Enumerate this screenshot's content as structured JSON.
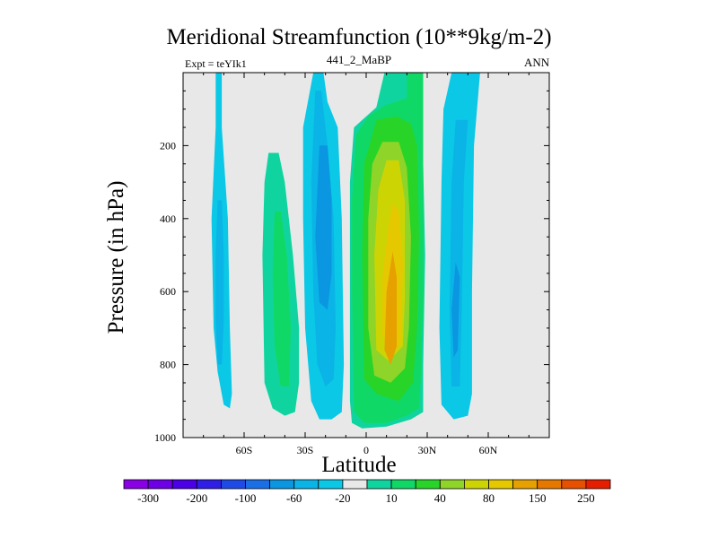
{
  "header": {
    "title": "Meridional Streamfunction (10**9kg/m-2)",
    "expt": "Expt = teYIk1",
    "subtitle": "441_2_MaBP",
    "season": "ANN"
  },
  "colors": {
    "plot_background": "#e8e8e8",
    "levels": [
      "#8a00e6",
      "#6e00e6",
      "#4b00e6",
      "#2f1fe6",
      "#1e4be6",
      "#1a6fe6",
      "#0a96e0",
      "#0ab4e6",
      "#0ac8e6",
      "#e8e8e8",
      "#10d4a0",
      "#10d866",
      "#28d428",
      "#8fd428",
      "#cdd404",
      "#e6c800",
      "#e6a000",
      "#e67800",
      "#e65000",
      "#e61e00"
    ]
  },
  "chart_data": {
    "type": "heatmap",
    "title": "Meridional Streamfunction (10**9kg/m-2)",
    "xlabel": "Latitude",
    "ylabel": "Pressure (in hPa)",
    "xlim": [
      -90,
      90
    ],
    "ylim": [
      1000,
      0
    ],
    "x_ticks": [
      {
        "value": -60,
        "label": "60S"
      },
      {
        "value": -30,
        "label": "30S"
      },
      {
        "value": 0,
        "label": "0"
      },
      {
        "value": 30,
        "label": "30N"
      },
      {
        "value": 60,
        "label": "60N"
      }
    ],
    "y_ticks": [
      {
        "value": 200,
        "label": "200"
      },
      {
        "value": 400,
        "label": "400"
      },
      {
        "value": 600,
        "label": "600"
      },
      {
        "value": 800,
        "label": "800"
      },
      {
        "value": 1000,
        "label": "1000"
      }
    ],
    "colorbar": {
      "labels": [
        "-300",
        "-200",
        "-100",
        "-60",
        "-20",
        "10",
        "40",
        "80",
        "150",
        "250"
      ]
    },
    "cells": [
      {
        "name": "cell-65s-negative",
        "layers": [
          {
            "level": 8,
            "poly": [
              [
                -74,
                0
              ],
              [
                -71,
                0
              ],
              [
                -71,
                150
              ],
              [
                -68,
                400
              ],
              [
                -67,
                700
              ],
              [
                -66,
                880
              ],
              [
                -67,
                920
              ],
              [
                -70,
                910
              ],
              [
                -73,
                820
              ],
              [
                -75,
                700
              ],
              [
                -76,
                400
              ],
              [
                -74,
                150
              ]
            ]
          },
          {
            "level": 7,
            "poly": [
              [
                -73,
                350
              ],
              [
                -71,
                350
              ],
              [
                -70,
                500
              ],
              [
                -70,
                680
              ],
              [
                -71,
                800
              ],
              [
                -73,
                800
              ],
              [
                -74,
                680
              ],
              [
                -74,
                500
              ]
            ]
          }
        ]
      },
      {
        "name": "cell-45s-positive",
        "layers": [
          {
            "level": 10,
            "poly": [
              [
                -48,
                220
              ],
              [
                -43,
                220
              ],
              [
                -40,
                300
              ],
              [
                -36,
                500
              ],
              [
                -33,
                700
              ],
              [
                -33,
                850
              ],
              [
                -35,
                930
              ],
              [
                -40,
                940
              ],
              [
                -46,
                920
              ],
              [
                -50,
                850
              ],
              [
                -51,
                500
              ],
              [
                -50,
                300
              ]
            ]
          },
          {
            "level": 11,
            "poly": [
              [
                -45,
                380
              ],
              [
                -42,
                380
              ],
              [
                -39,
                500
              ],
              [
                -37,
                700
              ],
              [
                -38,
                860
              ],
              [
                -42,
                860
              ],
              [
                -45,
                750
              ],
              [
                -46,
                550
              ]
            ]
          }
        ]
      },
      {
        "name": "cell-20s-negative",
        "layers": [
          {
            "level": 8,
            "poly": [
              [
                -26,
                0
              ],
              [
                -21,
                0
              ],
              [
                -19,
                80
              ],
              [
                -14,
                150
              ],
              [
                -12,
                400
              ],
              [
                -11,
                800
              ],
              [
                -12,
                930
              ],
              [
                -17,
                950
              ],
              [
                -23,
                950
              ],
              [
                -27,
                900
              ],
              [
                -30,
                700
              ],
              [
                -31,
                400
              ],
              [
                -31,
                150
              ]
            ]
          },
          {
            "level": 7,
            "poly": [
              [
                -25,
                50
              ],
              [
                -22,
                50
              ],
              [
                -19,
                200
              ],
              [
                -16,
                400
              ],
              [
                -15,
                700
              ],
              [
                -16,
                840
              ],
              [
                -20,
                860
              ],
              [
                -24,
                800
              ],
              [
                -26,
                600
              ],
              [
                -27,
                300
              ]
            ]
          },
          {
            "level": 6,
            "poly": [
              [
                -23,
                200
              ],
              [
                -19,
                200
              ],
              [
                -17,
                350
              ],
              [
                -17,
                550
              ],
              [
                -19,
                650
              ],
              [
                -23,
                630
              ],
              [
                -25,
                450
              ]
            ]
          }
        ]
      },
      {
        "name": "cell-15n-positive",
        "layers": [
          {
            "level": 10,
            "poly": [
              [
                9,
                0
              ],
              [
                28,
                0
              ],
              [
                28,
                250
              ],
              [
                29,
                500
              ],
              [
                28,
                800
              ],
              [
                28,
                930
              ],
              [
                22,
                950
              ],
              [
                10,
                970
              ],
              [
                -2,
                975
              ],
              [
                -7,
                960
              ],
              [
                -8,
                900
              ],
              [
                -8,
                300
              ],
              [
                -6,
                150
              ],
              [
                -2,
                130
              ],
              [
                5,
                95
              ]
            ]
          },
          {
            "level": 11,
            "poly": [
              [
                20,
                0
              ],
              [
                28,
                0
              ],
              [
                28,
                250
              ],
              [
                28,
                600
              ],
              [
                27,
                820
              ],
              [
                26,
                920
              ],
              [
                20,
                940
              ],
              [
                10,
                960
              ],
              [
                -1,
                960
              ],
              [
                -6,
                930
              ],
              [
                -7,
                600
              ],
              [
                -7,
                350
              ],
              [
                -5,
                170
              ],
              [
                1,
                120
              ],
              [
                9,
                90
              ],
              [
                20,
                70
              ]
            ]
          },
          {
            "level": 12,
            "poly": [
              [
                5,
                130
              ],
              [
                15,
                120
              ],
              [
                22,
                140
              ],
              [
                25,
                200
              ],
              [
                26,
                450
              ],
              [
                25,
                700
              ],
              [
                23,
                850
              ],
              [
                16,
                900
              ],
              [
                5,
                880
              ],
              [
                -1,
                840
              ],
              [
                -2,
                500
              ],
              [
                -1,
                250
              ]
            ]
          },
          {
            "level": 13,
            "poly": [
              [
                8,
                190
              ],
              [
                16,
                190
              ],
              [
                20,
                260
              ],
              [
                22,
                450
              ],
              [
                21,
                700
              ],
              [
                19,
                810
              ],
              [
                12,
                850
              ],
              [
                4,
                830
              ],
              [
                1,
                700
              ],
              [
                1,
                400
              ],
              [
                3,
                250
              ]
            ]
          },
          {
            "level": 14,
            "poly": [
              [
                10,
                240
              ],
              [
                16,
                240
              ],
              [
                19,
                350
              ],
              [
                19,
                620
              ],
              [
                18,
                750
              ],
              [
                11,
                790
              ],
              [
                5,
                760
              ],
              [
                4,
                500
              ],
              [
                6,
                320
              ]
            ]
          },
          {
            "level": 15,
            "poly": [
              [
                13,
                360
              ],
              [
                16,
                380
              ],
              [
                18,
                520
              ],
              [
                17,
                740
              ],
              [
                12,
                780
              ],
              [
                8,
                720
              ],
              [
                8,
                560
              ],
              [
                11,
                420
              ]
            ]
          },
          {
            "level": 16,
            "poly": [
              [
                13,
                490
              ],
              [
                15,
                560
              ],
              [
                15,
                750
              ],
              [
                12,
                800
              ],
              [
                9,
                760
              ],
              [
                10,
                600
              ]
            ]
          }
        ]
      },
      {
        "name": "cell-45n-negative",
        "layers": [
          {
            "level": 8,
            "poly": [
              [
                42,
                0
              ],
              [
                56,
                0
              ],
              [
                53,
                200
              ],
              [
                52,
                600
              ],
              [
                52,
                880
              ],
              [
                50,
                940
              ],
              [
                43,
                950
              ],
              [
                37,
                910
              ],
              [
                36,
                700
              ],
              [
                37,
                300
              ],
              [
                38,
                100
              ]
            ]
          },
          {
            "level": 7,
            "poly": [
              [
                44,
                130
              ],
              [
                50,
                130
              ],
              [
                48,
                300
              ],
              [
                47,
                650
              ],
              [
                46,
                860
              ],
              [
                42,
                860
              ],
              [
                41,
                650
              ],
              [
                42,
                300
              ]
            ]
          },
          {
            "level": 6,
            "poly": [
              [
                44,
                520
              ],
              [
                46,
                560
              ],
              [
                45,
                760
              ],
              [
                43,
                780
              ],
              [
                42,
                650
              ]
            ]
          }
        ]
      }
    ]
  }
}
